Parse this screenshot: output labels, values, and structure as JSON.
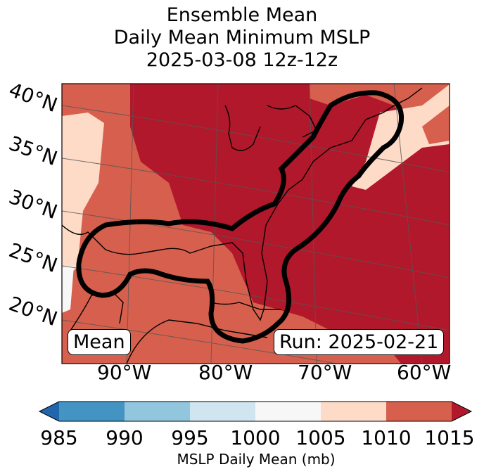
{
  "title": {
    "line1": "Ensemble Mean",
    "line2": "Daily Mean Minimum MSLP",
    "line3": "2025-03-08 12z-12z"
  },
  "map": {
    "lat_labels": [
      "40°N",
      "35°N",
      "30°N",
      "25°N",
      "20°N"
    ],
    "lon_labels": [
      "90°W",
      "80°W",
      "70°W",
      "60°W"
    ],
    "mean_label": "Mean",
    "run_label": "Run: 2025-02-21"
  },
  "colorbar": {
    "ticks": [
      "985",
      "990",
      "995",
      "1000",
      "1005",
      "1010",
      "1015"
    ],
    "label": "MSLP Daily Mean (mb)",
    "colors": [
      "#2166ac",
      "#4393c3",
      "#92c5de",
      "#d1e5f0",
      "#f7f7f7",
      "#fddbc7",
      "#d6604d",
      "#b2182b"
    ]
  }
}
